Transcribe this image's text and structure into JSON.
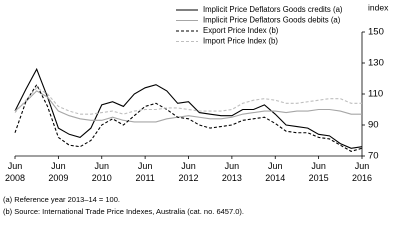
{
  "chart_data": {
    "type": "line",
    "y_label": "index",
    "categories": [
      "Jun 2008",
      null,
      null,
      null,
      "Jun 2009",
      null,
      null,
      null,
      "Jun 2010",
      null,
      null,
      null,
      "Jun 2011",
      null,
      null,
      null,
      "Jun 2012",
      null,
      null,
      null,
      "Jun 2013",
      null,
      null,
      null,
      "Jun 2014",
      null,
      null,
      null,
      "Jun 2015",
      null,
      null,
      null,
      "Jun 2016"
    ],
    "series": [
      {
        "name": "Implicit Price Deflators Goods credits (a)",
        "color": "#000000",
        "dashed": false,
        "values": [
          99,
          113,
          126,
          108,
          88,
          84,
          82,
          88,
          103,
          105,
          102,
          110,
          114,
          116,
          112,
          104,
          105,
          98,
          97,
          96,
          96,
          100,
          100,
          103,
          97,
          90,
          89,
          88,
          84,
          83,
          78,
          75,
          76
        ]
      },
      {
        "name": "Implicit Price Deflators Goods debits (a)",
        "color": "#a6a6a6",
        "dashed": false,
        "values": [
          99,
          105,
          112,
          108,
          99,
          96,
          94,
          93,
          93,
          95,
          93,
          92,
          92,
          92,
          94,
          95,
          96,
          95,
          94,
          94,
          95,
          97,
          98,
          99,
          99,
          98,
          99,
          99,
          100,
          100,
          99,
          97,
          97
        ]
      },
      {
        "name": "Export Price Index (b)",
        "color": "#000000",
        "dashed": true,
        "values": [
          85,
          105,
          116,
          102,
          82,
          77,
          76,
          80,
          90,
          94,
          90,
          96,
          102,
          104,
          100,
          95,
          94,
          90,
          88,
          89,
          90,
          93,
          94,
          95,
          91,
          86,
          85,
          85,
          82,
          81,
          77,
          73,
          75
        ]
      },
      {
        "name": "Import Price Index (b)",
        "color": "#bfbfbf",
        "dashed": true,
        "values": [
          98,
          106,
          114,
          110,
          102,
          99,
          97,
          97,
          98,
          99,
          97,
          99,
          100,
          100,
          101,
          101,
          100,
          99,
          99,
          99,
          100,
          104,
          106,
          107,
          106,
          104,
          104,
          105,
          106,
          107,
          107,
          104,
          104
        ]
      }
    ],
    "ylim": [
      70,
      150
    ],
    "yticks": [
      70,
      90,
      110,
      130,
      150
    ],
    "footnotes": [
      "(a) Reference year 2013–14 = 100.",
      "(b) Source: International Trade Price Indexes, Australia (cat. no. 6457.0)."
    ]
  }
}
